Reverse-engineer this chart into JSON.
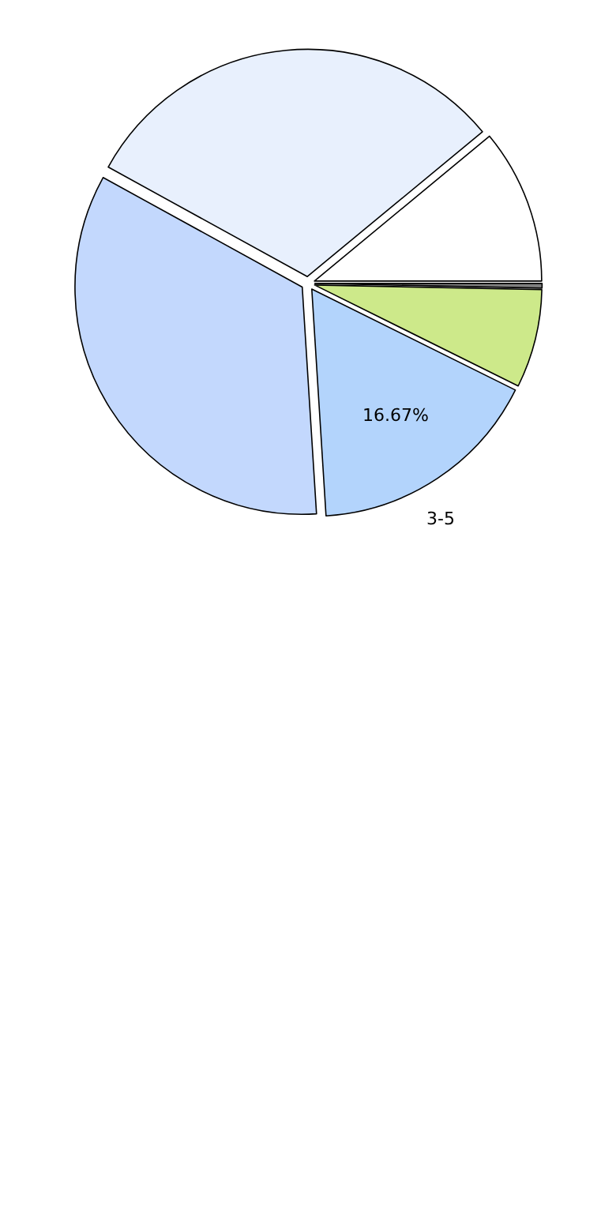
{
  "chart_data": {
    "type": "pie",
    "categories": [
      null,
      null,
      "3-5",
      null,
      null,
      null
    ],
    "values": [
      0.33,
      7,
      16.67,
      34,
      31,
      11
    ],
    "value_labels": [
      null,
      null,
      "16.67%",
      null,
      null,
      null
    ],
    "colors": [
      "#808080",
      "#cde98a",
      "#b3d4fc",
      "#c3d8fd",
      "#e8f0fd",
      "#ffffff"
    ]
  }
}
